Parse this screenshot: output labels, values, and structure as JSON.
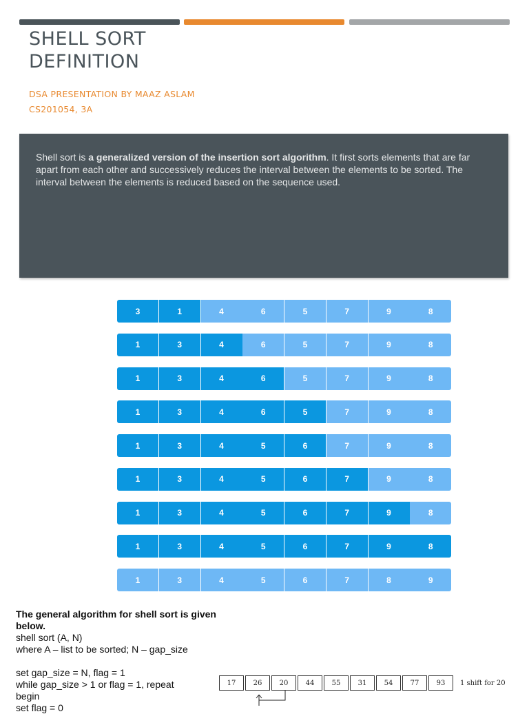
{
  "header": {
    "title_line1": "SHELL SORT",
    "title_line2": "DEFINITION",
    "subtitle1": "DSA PRESENTATION BY MAAZ ASLAM",
    "subtitle2": "CS201054, 3A"
  },
  "panel": {
    "text_before": "Shell sort is ",
    "text_bold": "a generalized version of the insertion sort algorithm",
    "text_after": ". It first sorts elements that are far apart from each other and successively reduces the interval between the elements to be sorted. The interval between the elements is reduced based on the sequence used."
  },
  "colors": {
    "sorted": "#0b97e0",
    "unsorted": "#6eb8f5",
    "panel": "#4a545a",
    "accent": "#e8892f"
  },
  "array_steps": [
    {
      "values": [
        "3",
        "1",
        "4",
        "6",
        "5",
        "7",
        "9",
        "8"
      ],
      "sorted_count": 2
    },
    {
      "values": [
        "1",
        "3",
        "4",
        "6",
        "5",
        "7",
        "9",
        "8"
      ],
      "sorted_count": 3
    },
    {
      "values": [
        "1",
        "3",
        "4",
        "6",
        "5",
        "7",
        "9",
        "8"
      ],
      "sorted_count": 4
    },
    {
      "values": [
        "1",
        "3",
        "4",
        "6",
        "5",
        "7",
        "9",
        "8"
      ],
      "sorted_count": 5
    },
    {
      "values": [
        "1",
        "3",
        "4",
        "5",
        "6",
        "7",
        "9",
        "8"
      ],
      "sorted_count": 5
    },
    {
      "values": [
        "1",
        "3",
        "4",
        "5",
        "6",
        "7",
        "9",
        "8"
      ],
      "sorted_count": 6
    },
    {
      "values": [
        "1",
        "3",
        "4",
        "5",
        "6",
        "7",
        "9",
        "8"
      ],
      "sorted_count": 7
    },
    {
      "values": [
        "1",
        "3",
        "4",
        "5",
        "6",
        "7",
        "9",
        "8"
      ],
      "sorted_count": 8
    },
    {
      "values": [
        "1",
        "3",
        "4",
        "5",
        "6",
        "7",
        "8",
        "9"
      ],
      "sorted_count": 0
    }
  ],
  "algorithm": {
    "heading": "The general algorithm for shell sort is given below.",
    "line1": "shell sort (A, N)",
    "line2": "where A – list to be sorted; N – gap_size",
    "line3": "set gap_size = N, flag = 1",
    "line4": "while gap_size > 1 or flag = 1, repeat",
    "line5": "begin",
    "line6": "set flag = 0"
  },
  "shift_example": {
    "values": [
      "17",
      "26",
      "20",
      "44",
      "55",
      "31",
      "54",
      "77",
      "93"
    ],
    "label": "1 shift for 20"
  }
}
